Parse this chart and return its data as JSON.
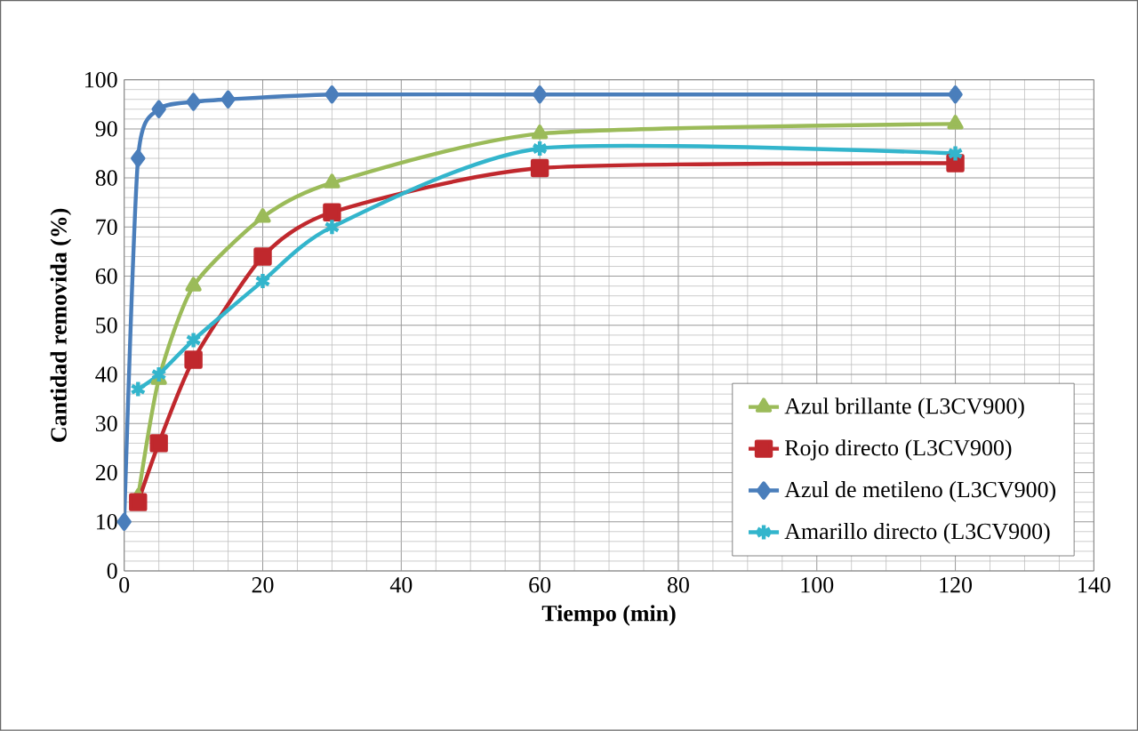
{
  "chart_data": {
    "type": "line",
    "xlabel": "Tiempo (min)",
    "ylabel": "Cantidad removida (%)",
    "xlim": [
      0,
      140
    ],
    "xticks": [
      0,
      20,
      40,
      60,
      80,
      100,
      120,
      140
    ],
    "ylim": [
      0,
      100
    ],
    "yticks": [
      0,
      10,
      20,
      30,
      40,
      50,
      60,
      70,
      80,
      90,
      100
    ],
    "grid": true,
    "legend": "bottom right",
    "line_style": "solid",
    "series": [
      {
        "name": "Azul brillante (L3CV900)",
        "color": "#9bbb59",
        "marker": "triangle",
        "x": [
          2,
          5,
          10,
          20,
          30,
          60,
          120
        ],
        "values": [
          15,
          39,
          58,
          72,
          79,
          89,
          91
        ]
      },
      {
        "name": "Rojo directo (L3CV900)",
        "color": "#c0282d",
        "marker": "square",
        "x": [
          2,
          5,
          10,
          20,
          30,
          60,
          120
        ],
        "values": [
          14,
          26,
          43,
          64,
          73,
          82,
          83
        ]
      },
      {
        "name": "Azul de metileno (L3CV900)",
        "color": "#4a7ebb",
        "marker": "diamond",
        "x": [
          0,
          2,
          5,
          10,
          15,
          30,
          60,
          120
        ],
        "values": [
          10,
          84,
          94,
          95.5,
          96,
          97,
          97,
          97
        ]
      },
      {
        "name": "Amarillo directo (L3CV900)",
        "color": "#33b5cc",
        "marker": "cross",
        "x": [
          2,
          5,
          10,
          20,
          30,
          60,
          120
        ],
        "values": [
          37,
          40,
          47,
          59,
          70,
          86,
          85
        ]
      }
    ]
  }
}
